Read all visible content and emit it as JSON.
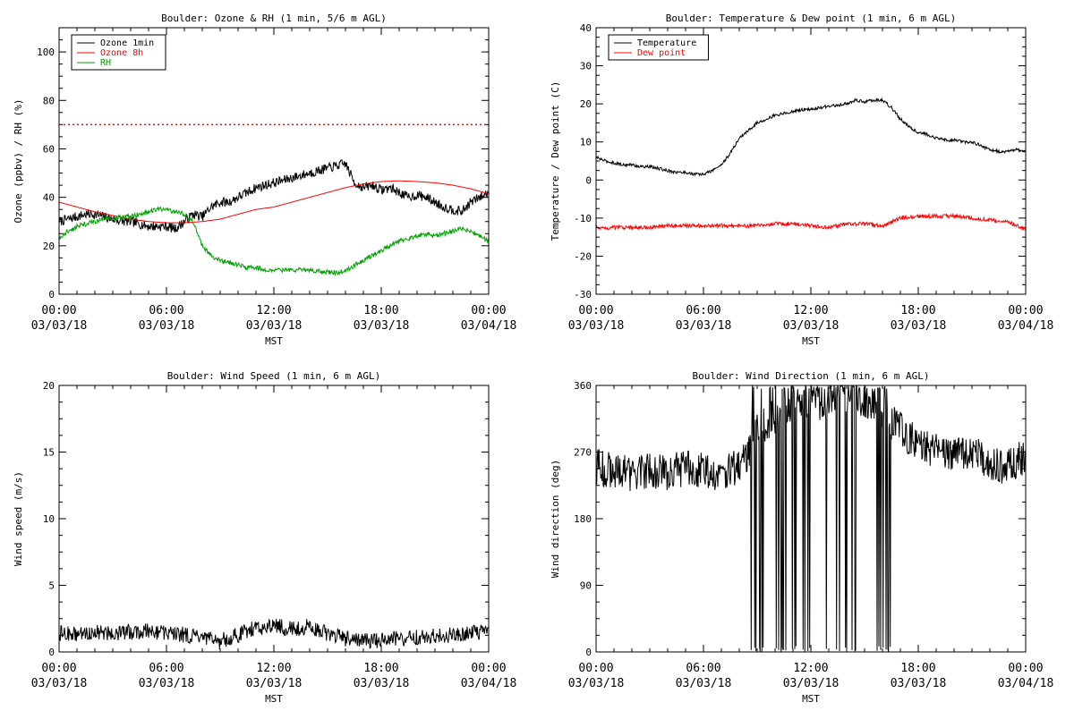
{
  "chart_data": [
    {
      "type": "line",
      "title": "Boulder: Ozone & RH (1 min, 5/6 m AGL)",
      "xlabel": "MST",
      "ylabel": "Ozone (ppbv) / RH (%)",
      "ylim": [
        0,
        110
      ],
      "yticks": [
        0,
        20,
        40,
        60,
        80,
        100
      ],
      "xlim": [
        0,
        24
      ],
      "xticks": [
        0,
        6,
        12,
        18,
        24
      ],
      "xtick_labels": [
        [
          "00:00",
          "03/03/18"
        ],
        [
          "06:00",
          "03/03/18"
        ],
        [
          "12:00",
          "03/03/18"
        ],
        [
          "18:00",
          "03/03/18"
        ],
        [
          "00:00",
          "03/04/18"
        ]
      ],
      "legend": "top-left",
      "reference_lines": [
        {
          "y": 70,
          "color": "#ff0000",
          "style": "dotted"
        }
      ],
      "series": [
        {
          "name": "Ozone 1min",
          "color": "#000000",
          "x": [
            0,
            0.5,
            1,
            1.5,
            2,
            2.5,
            3,
            3.5,
            4,
            4.5,
            5,
            5.5,
            6,
            6.5,
            7,
            7.5,
            8,
            8.5,
            9,
            9.5,
            10,
            10.5,
            11,
            11.5,
            12,
            12.5,
            13,
            13.5,
            14,
            14.5,
            15,
            15.5,
            16,
            16.5,
            17,
            17.5,
            18,
            18.5,
            19,
            19.5,
            20,
            20.5,
            21,
            21.5,
            22,
            22.5,
            23,
            23.5,
            24
          ],
          "values": [
            30,
            31,
            32,
            33,
            33,
            32,
            31,
            30,
            30,
            29,
            28,
            28,
            28,
            27,
            30,
            33,
            32,
            36,
            38,
            38,
            40,
            42,
            44,
            45,
            46,
            47,
            48,
            49,
            50,
            51,
            52,
            53,
            54,
            46,
            44,
            45,
            43,
            44,
            42,
            40,
            41,
            40,
            38,
            36,
            35,
            34,
            38,
            40,
            42
          ],
          "noise": 2
        },
        {
          "name": "Ozone 8h",
          "color": "#ff0000",
          "x": [
            0,
            1,
            2,
            3,
            4,
            5,
            6,
            7,
            8,
            9,
            10,
            11,
            12,
            13,
            14,
            15,
            16,
            17,
            18,
            19,
            20,
            21,
            22,
            23,
            24
          ],
          "values": [
            38,
            36,
            34,
            32.5,
            31,
            30,
            29.5,
            29.5,
            30,
            31,
            33,
            35,
            36,
            38,
            40,
            42,
            44,
            45.5,
            46.5,
            46.8,
            46.5,
            46,
            45,
            43.5,
            41.5
          ],
          "noise": 0
        },
        {
          "name": "RH",
          "color": "#00a000",
          "x": [
            0,
            0.5,
            1,
            1.5,
            2,
            2.5,
            3,
            3.5,
            4,
            4.5,
            5,
            5.5,
            6,
            6.5,
            7,
            7.5,
            8,
            8.5,
            9,
            9.5,
            10,
            10.5,
            11,
            11.5,
            12,
            12.5,
            13,
            13.5,
            14,
            14.5,
            15,
            15.5,
            16,
            16.5,
            17,
            17.5,
            18,
            18.5,
            19,
            19.5,
            20,
            20.5,
            21,
            21.5,
            22,
            22.5,
            23,
            23.5,
            24
          ],
          "values": [
            23,
            26,
            28,
            29,
            30,
            31,
            31,
            32,
            32,
            33,
            34,
            35,
            35,
            34,
            33,
            30,
            20,
            16,
            14,
            13,
            12,
            11,
            11,
            10,
            10,
            10,
            10,
            10,
            10,
            9.5,
            9,
            9,
            9.5,
            12,
            14,
            16,
            18,
            20,
            22,
            23,
            24,
            25,
            24,
            25,
            26,
            27,
            26,
            24,
            22
          ],
          "noise": 1
        }
      ]
    },
    {
      "type": "line",
      "title": "Boulder: Temperature & Dew point (1 min, 6 m AGL)",
      "xlabel": "MST",
      "ylabel": "Temperature / Dew point (C)",
      "ylim": [
        -30,
        40
      ],
      "yticks": [
        -30,
        -20,
        -10,
        0,
        10,
        20,
        30,
        40
      ],
      "xlim": [
        0,
        24
      ],
      "xticks": [
        0,
        6,
        12,
        18,
        24
      ],
      "xtick_labels": [
        [
          "00:00",
          "03/03/18"
        ],
        [
          "06:00",
          "03/03/18"
        ],
        [
          "12:00",
          "03/03/18"
        ],
        [
          "18:00",
          "03/03/18"
        ],
        [
          "00:00",
          "03/04/18"
        ]
      ],
      "legend": "top-left",
      "series": [
        {
          "name": "Temperature",
          "color": "#000000",
          "x": [
            0,
            0.5,
            1,
            1.5,
            2,
            2.5,
            3,
            3.5,
            4,
            4.5,
            5,
            5.5,
            6,
            6.5,
            7,
            7.5,
            8,
            8.5,
            9,
            9.5,
            10,
            10.5,
            11,
            11.5,
            12,
            12.5,
            13,
            13.5,
            14,
            14.5,
            15,
            15.5,
            16,
            16.5,
            17,
            17.5,
            18,
            18.5,
            19,
            19.5,
            20,
            20.5,
            21,
            21.5,
            22,
            22.5,
            23,
            23.5,
            24
          ],
          "values": [
            6,
            5,
            4.5,
            4,
            4,
            3.5,
            3.5,
            3,
            2.5,
            2,
            2,
            1.5,
            1.5,
            2.5,
            4,
            7,
            11,
            13,
            15,
            16,
            17,
            17.5,
            18,
            18.5,
            18.5,
            19,
            19.5,
            19.5,
            20,
            21,
            20.5,
            21,
            21,
            19,
            16,
            14,
            12.5,
            12,
            11,
            10.5,
            10.5,
            10,
            10,
            9,
            8,
            7.5,
            7.5,
            8,
            7.5
          ],
          "noise": 0.4
        },
        {
          "name": "Dew point",
          "color": "#ff0000",
          "x": [
            0,
            1,
            2,
            3,
            4,
            5,
            6,
            7,
            8,
            9,
            10,
            11,
            12,
            13,
            14,
            15,
            16,
            17,
            18,
            19,
            20,
            21,
            22,
            23,
            24
          ],
          "values": [
            -12.5,
            -12.5,
            -12.5,
            -12.5,
            -12,
            -12,
            -12,
            -12,
            -12,
            -12,
            -11.5,
            -11.5,
            -12,
            -12.5,
            -11.5,
            -11.5,
            -12,
            -10,
            -9.5,
            -9.5,
            -9.5,
            -10,
            -10.5,
            -11,
            -13
          ],
          "noise": 0.5
        }
      ]
    },
    {
      "type": "line",
      "title": "Boulder: Wind Speed (1 min, 6 m AGL)",
      "xlabel": "MST",
      "ylabel": "Wind speed (m/s)",
      "ylim": [
        0,
        20
      ],
      "yticks": [
        0,
        5,
        10,
        15,
        20
      ],
      "xlim": [
        0,
        24
      ],
      "xticks": [
        0,
        6,
        12,
        18,
        24
      ],
      "xtick_labels": [
        [
          "00:00",
          "03/03/18"
        ],
        [
          "06:00",
          "03/03/18"
        ],
        [
          "12:00",
          "03/03/18"
        ],
        [
          "18:00",
          "03/03/18"
        ],
        [
          "00:00",
          "03/04/18"
        ]
      ],
      "series": [
        {
          "name": "",
          "color": "#000000",
          "x": [
            0,
            1,
            2,
            3,
            4,
            5,
            6,
            7,
            8,
            9,
            10,
            11,
            12,
            13,
            14,
            15,
            16,
            17,
            18,
            19,
            20,
            21,
            22,
            23,
            24
          ],
          "values": [
            1.4,
            1.3,
            1.5,
            1.4,
            1.5,
            1.6,
            1.4,
            1.3,
            1.0,
            0.8,
            1.3,
            1.8,
            2.0,
            1.7,
            1.9,
            1.4,
            1.0,
            0.8,
            0.9,
            1.0,
            1.1,
            1.2,
            1.3,
            1.4,
            1.5
          ],
          "noise": 0.6
        }
      ]
    },
    {
      "type": "line",
      "title": "Boulder: Wind Direction (1 min, 6 m AGL)",
      "xlabel": "MST",
      "ylabel": "Wind direction (deg)",
      "ylim": [
        0,
        360
      ],
      "yticks": [
        0,
        90,
        180,
        270,
        360
      ],
      "xlim": [
        0,
        24
      ],
      "xticks": [
        0,
        6,
        12,
        18,
        24
      ],
      "xtick_labels": [
        [
          "00:00",
          "03/03/18"
        ],
        [
          "06:00",
          "03/03/18"
        ],
        [
          "12:00",
          "03/03/18"
        ],
        [
          "18:00",
          "03/03/18"
        ],
        [
          "00:00",
          "03/04/18"
        ]
      ],
      "series": [
        {
          "name": "",
          "color": "#000000",
          "x": [
            0,
            1,
            2,
            3,
            4,
            5,
            6,
            7,
            8,
            8.5,
            9,
            10,
            11,
            12,
            13,
            14,
            15,
            16,
            16.5,
            17,
            18,
            19,
            20,
            21,
            22,
            23,
            24
          ],
          "values": [
            250,
            245,
            240,
            245,
            240,
            250,
            245,
            240,
            250,
            270,
            300,
            320,
            330,
            330,
            340,
            350,
            340,
            320,
            310,
            300,
            280,
            270,
            265,
            270,
            255,
            250,
            265
          ],
          "noise": 25,
          "wrap_from": 8.5,
          "wrap_to": 16.5
        }
      ]
    }
  ]
}
